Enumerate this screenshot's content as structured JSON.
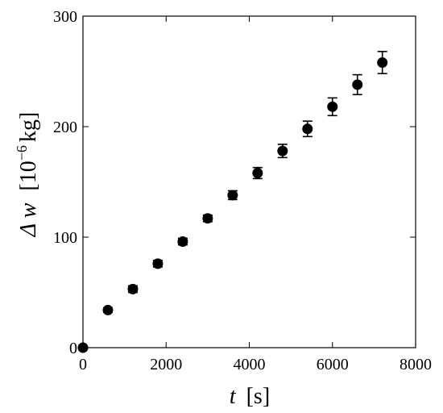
{
  "chart_data": {
    "type": "scatter",
    "xlabel_var": "t",
    "xlabel_unit": "[s]",
    "ylabel_var": "Δ w",
    "ylabel_unit_prefix": "[10",
    "ylabel_unit_exp": "−6",
    "ylabel_unit_suffix": "kg]",
    "xlim": [
      0,
      8000
    ],
    "ylim": [
      0,
      300
    ],
    "xticks": [
      0,
      2000,
      4000,
      6000,
      8000
    ],
    "yticks": [
      0,
      100,
      200,
      300
    ],
    "grid": false,
    "marker_color": "#000000",
    "series": [
      {
        "x": [
          0,
          600,
          1200,
          1800,
          2400,
          3000,
          3600,
          4200,
          4800,
          5400,
          6000,
          6600,
          7200
        ],
        "y": [
          0,
          34,
          53,
          76,
          96,
          117,
          138,
          158,
          178,
          198,
          218,
          238,
          258
        ],
        "err": [
          0,
          2,
          3,
          3,
          3,
          3,
          4,
          5,
          6,
          7,
          8,
          9,
          10
        ]
      }
    ]
  }
}
